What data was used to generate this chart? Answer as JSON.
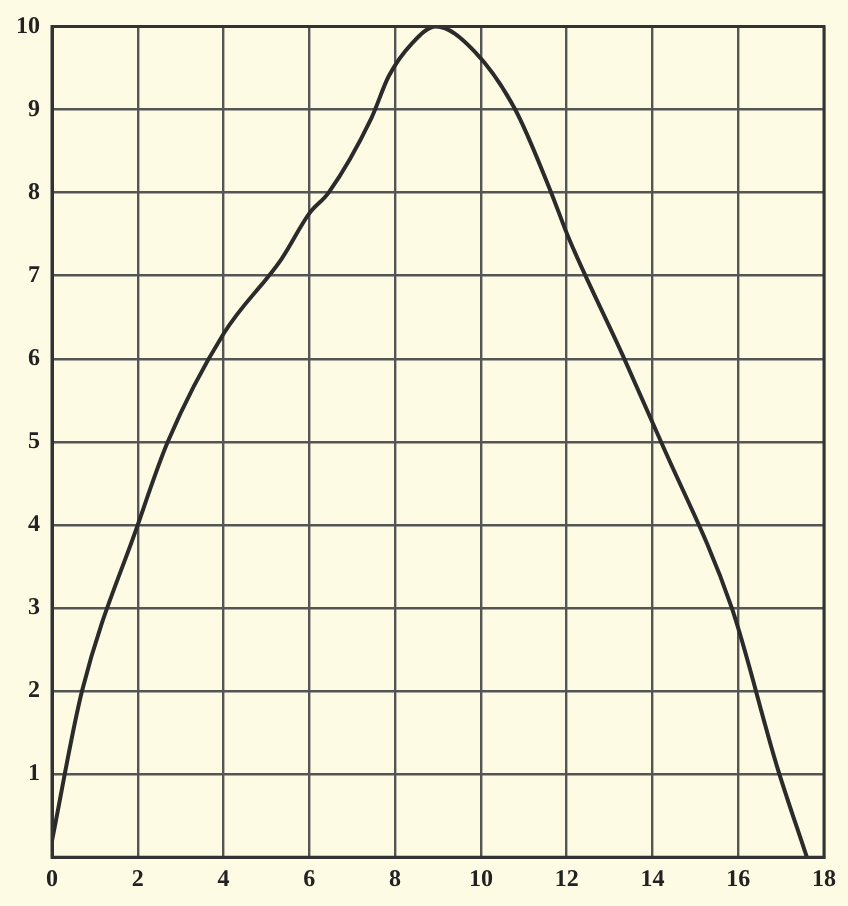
{
  "chart_data": {
    "type": "line",
    "series": [
      {
        "color": "#2b2b2b",
        "x": [
          0,
          0.7,
          2,
          2.7,
          4,
          5.35,
          6,
          6.45,
          7.45,
          7.85,
          8.4,
          8.95,
          9.85,
          10.8,
          11.6,
          12.05,
          13.3,
          14.2,
          15.85,
          16.9,
          17.6
        ],
        "values": [
          0.2,
          2.0,
          4.0,
          5.0,
          6.3,
          7.2,
          7.75,
          8.0,
          8.9,
          9.4,
          9.8,
          10.0,
          9.7,
          9.0,
          8.05,
          7.45,
          6.05,
          5.0,
          3.0,
          1.1,
          0
        ]
      }
    ],
    "xlim": [
      0,
      18
    ],
    "xticks": [
      0,
      2,
      4,
      6,
      8,
      10,
      12,
      14,
      16,
      18
    ],
    "ylim": [
      0,
      10
    ],
    "yticks": [
      {
        "value": 0,
        "label": null
      },
      1,
      2,
      3,
      4,
      5,
      6,
      7,
      8,
      9,
      10
    ],
    "grid": true,
    "marker": "none",
    "line_style": "solid",
    "legend": false
  }
}
